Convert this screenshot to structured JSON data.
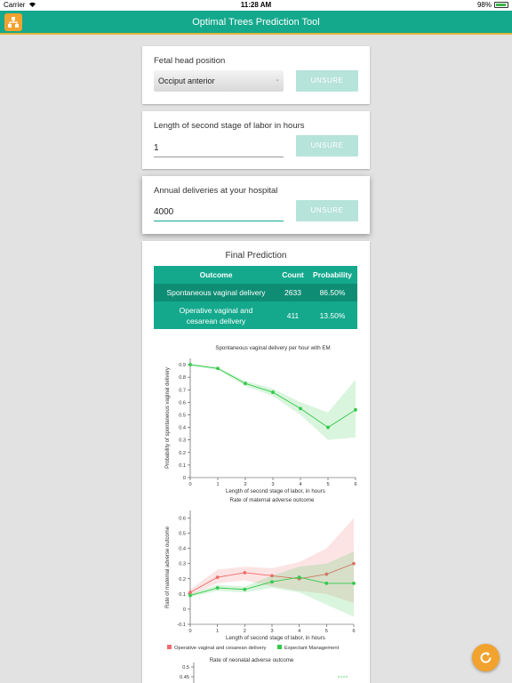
{
  "statusbar": {
    "carrier": "Carrier",
    "time": "11:28 AM",
    "battery": "98%"
  },
  "appbar": {
    "title": "Optimal Trees Prediction Tool"
  },
  "fetal_head": {
    "label": "Fetal head position",
    "value": "Occiput anterior",
    "unsure": "UNSURE"
  },
  "second_stage": {
    "label": "Length of second stage of labor in hours",
    "value": "1",
    "unsure": "UNSURE"
  },
  "annual": {
    "label": "Annual deliveries at your hospital",
    "value": "4000",
    "unsure": "UNSURE"
  },
  "prediction": {
    "title": "Final Prediction",
    "headers": {
      "outcome": "Outcome",
      "count": "Count",
      "probability": "Probability"
    },
    "rows": [
      {
        "outcome": "Spontaneous vaginal delivery",
        "count": "2633",
        "probability": "86.50%"
      },
      {
        "outcome": "Operative vaginal and cesarean delivery",
        "count": "411",
        "probability": "13.50%"
      }
    ]
  },
  "chart_data": [
    {
      "type": "line",
      "title": "Spontaneous vaginal delivery per hour with EM",
      "xlabel": "Length of second stage of labor, in hours",
      "ylabel": "Probability of spontaneous vaginal delivery",
      "x": [
        0,
        1,
        2,
        3,
        4,
        5,
        6
      ],
      "xlim": [
        0,
        6
      ],
      "ylim": [
        0,
        0.95
      ],
      "yticks": [
        0,
        0.1,
        0.2,
        0.3,
        0.4,
        0.5,
        0.6,
        0.7,
        0.8,
        0.9
      ],
      "series": [
        {
          "values": [
            0.9,
            0.87,
            0.75,
            0.68,
            0.55,
            0.4,
            0.54
          ],
          "lower": [
            0.89,
            0.86,
            0.73,
            0.65,
            0.5,
            0.3,
            0.32
          ],
          "upper": [
            0.91,
            0.88,
            0.77,
            0.71,
            0.6,
            0.52,
            0.78
          ],
          "color": "#31c94a"
        }
      ],
      "grid": false
    },
    {
      "type": "line",
      "title": "Rate of maternal adverse outcome",
      "xlabel": "Length of second stage of labor, in hours",
      "ylabel": "Rate of maternal adverse outcome",
      "x": [
        0,
        1,
        2,
        3,
        4,
        5,
        6
      ],
      "xlim": [
        0,
        6
      ],
      "ylim": [
        -0.1,
        0.65
      ],
      "yticks": [
        -0.1,
        0,
        0.1,
        0.2,
        0.3,
        0.4,
        0.5,
        0.6
      ],
      "series": [
        {
          "name": "Operative vaginal and cesarean delivery",
          "values": [
            0.11,
            0.21,
            0.24,
            0.22,
            0.2,
            0.23,
            0.3
          ],
          "lower": [
            0.09,
            0.17,
            0.19,
            0.15,
            0.12,
            0.1,
            0.04
          ],
          "upper": [
            0.13,
            0.26,
            0.28,
            0.27,
            0.31,
            0.4,
            0.6
          ],
          "color": "#f06b6b"
        },
        {
          "name": "Expectant Management",
          "values": [
            0.09,
            0.14,
            0.13,
            0.18,
            0.21,
            0.17,
            0.17
          ],
          "lower": [
            0.08,
            0.12,
            0.11,
            0.14,
            0.11,
            0.03,
            -0.05
          ],
          "upper": [
            0.1,
            0.16,
            0.15,
            0.22,
            0.28,
            0.3,
            0.38
          ],
          "color": "#31c94a"
        }
      ],
      "legend": "bottom",
      "grid": false
    },
    {
      "type": "line",
      "title": "Rate of neonatal adverse outcome",
      "yticks": [
        0.5,
        0.45
      ]
    }
  ],
  "icons": {
    "logo": "tree-logo-icon",
    "fab": "refresh-icon",
    "chevron": "chevron-down-icon"
  },
  "colors": {
    "primary": "#14a98d",
    "accent": "#f2a32f",
    "unsure_bg": "#b6e3da"
  }
}
